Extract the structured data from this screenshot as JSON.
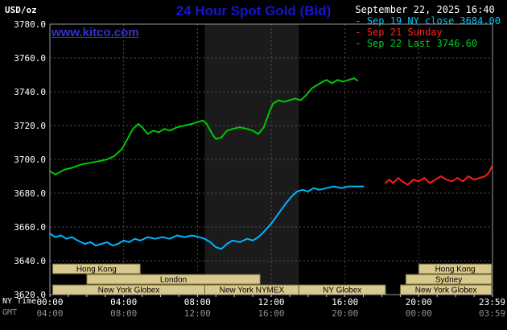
{
  "header": {
    "unit": "USD/oz",
    "title": "24 Hour Spot Gold (Bid)",
    "datetime": "September 22, 2025 16:40",
    "watermark": "www.kitco.com"
  },
  "legend": [
    {
      "label": "Sep 19 NY close 3684.00",
      "color": "#00c8ff"
    },
    {
      "label": "Sep 21 Sunday",
      "color": "#ff2020"
    },
    {
      "label": "Sep 22 Last 3746.60",
      "color": "#00cc22"
    }
  ],
  "axes": {
    "ny_label": "NY Time",
    "gmt_label": "GMT",
    "y_ticks": [
      {
        "v": 3780,
        "label": "3780.0"
      },
      {
        "v": 3760,
        "label": "3760.0"
      },
      {
        "v": 3740,
        "label": "3740.0"
      },
      {
        "v": 3720,
        "label": "3720.0"
      },
      {
        "v": 3700,
        "label": "3700.0"
      },
      {
        "v": 3680,
        "label": "3680.0"
      },
      {
        "v": 3660,
        "label": "3660.0"
      },
      {
        "v": 3640,
        "label": "3640.0"
      },
      {
        "v": 3620,
        "label": "3620.0"
      }
    ],
    "x_ticks": [
      {
        "h": 0,
        "ny": "00:00",
        "gmt": "04:00"
      },
      {
        "h": 4,
        "ny": "04:00",
        "gmt": "08:00"
      },
      {
        "h": 8,
        "ny": "08:00",
        "gmt": "12:00"
      },
      {
        "h": 12,
        "ny": "12:00",
        "gmt": "16:00"
      },
      {
        "h": 16,
        "ny": "16:00",
        "gmt": "20:00"
      },
      {
        "h": 20,
        "ny": "20:00",
        "gmt": "00:00"
      },
      {
        "h": 23.98,
        "ny": "23:59",
        "gmt": "03:59"
      }
    ]
  },
  "colors": {
    "background": "#000000",
    "title": "#1515cd",
    "watermark": "#3232cc",
    "text": "#ffffff",
    "text_dim": "#909090",
    "grid": "#4f4f4f",
    "frame": "#9a9a9a",
    "band": "#1b1b1b",
    "session_fill": "#d8c98c",
    "session_border": "#6b6136",
    "session_text": "#000000"
  },
  "chart_data": {
    "type": "line",
    "title": "24 Hour Spot Gold (Bid)",
    "x_unit": "hours (NY time)",
    "y_unit": "USD/oz",
    "xlim": [
      0,
      24
    ],
    "ylim": [
      3620,
      3780
    ],
    "grid": true,
    "session_band": {
      "start": 8.4,
      "end": 13.5
    },
    "series": [
      {
        "name": "Sep 19 NY close",
        "color": "#00b4ff",
        "points": [
          [
            0,
            3656
          ],
          [
            0.3,
            3654
          ],
          [
            0.6,
            3655
          ],
          [
            0.9,
            3653
          ],
          [
            1.2,
            3654
          ],
          [
            1.5,
            3652
          ],
          [
            1.9,
            3650
          ],
          [
            2.2,
            3651
          ],
          [
            2.5,
            3649
          ],
          [
            2.8,
            3650
          ],
          [
            3.1,
            3651
          ],
          [
            3.4,
            3649
          ],
          [
            3.7,
            3650
          ],
          [
            4.0,
            3652
          ],
          [
            4.3,
            3651
          ],
          [
            4.6,
            3653
          ],
          [
            4.9,
            3652
          ],
          [
            5.3,
            3654
          ],
          [
            5.7,
            3653
          ],
          [
            6.1,
            3654
          ],
          [
            6.5,
            3653
          ],
          [
            6.9,
            3655
          ],
          [
            7.3,
            3654
          ],
          [
            7.7,
            3655
          ],
          [
            8.1,
            3654
          ],
          [
            8.4,
            3653
          ],
          [
            8.7,
            3651
          ],
          [
            9.0,
            3648
          ],
          [
            9.3,
            3647
          ],
          [
            9.6,
            3650
          ],
          [
            9.9,
            3652
          ],
          [
            10.3,
            3651
          ],
          [
            10.7,
            3653
          ],
          [
            11.0,
            3652
          ],
          [
            11.3,
            3654
          ],
          [
            11.6,
            3657
          ],
          [
            12.0,
            3662
          ],
          [
            12.4,
            3668
          ],
          [
            12.8,
            3674
          ],
          [
            13.1,
            3678
          ],
          [
            13.4,
            3681
          ],
          [
            13.7,
            3682
          ],
          [
            14.0,
            3681
          ],
          [
            14.3,
            3683
          ],
          [
            14.6,
            3682
          ],
          [
            15.0,
            3683
          ],
          [
            15.4,
            3684
          ],
          [
            15.8,
            3683
          ],
          [
            16.2,
            3684
          ],
          [
            16.6,
            3684
          ],
          [
            17.0,
            3684
          ]
        ]
      },
      {
        "name": "Sep 21 Sunday",
        "color": "#ff1a1a",
        "points": [
          [
            18.2,
            3686
          ],
          [
            18.4,
            3688
          ],
          [
            18.6,
            3686
          ],
          [
            18.9,
            3689
          ],
          [
            19.1,
            3687
          ],
          [
            19.4,
            3685
          ],
          [
            19.7,
            3688
          ],
          [
            20.0,
            3687
          ],
          [
            20.3,
            3689
          ],
          [
            20.6,
            3686
          ],
          [
            20.9,
            3688
          ],
          [
            21.2,
            3690
          ],
          [
            21.5,
            3688
          ],
          [
            21.8,
            3687
          ],
          [
            22.1,
            3689
          ],
          [
            22.4,
            3687
          ],
          [
            22.7,
            3690
          ],
          [
            23.0,
            3688
          ],
          [
            23.3,
            3689
          ],
          [
            23.6,
            3690
          ],
          [
            23.8,
            3692
          ],
          [
            23.98,
            3696
          ]
        ]
      },
      {
        "name": "Sep 22 Last",
        "color": "#00c800",
        "points": [
          [
            0,
            3693
          ],
          [
            0.3,
            3691
          ],
          [
            0.8,
            3694
          ],
          [
            1.2,
            3695
          ],
          [
            1.7,
            3697
          ],
          [
            2.2,
            3698
          ],
          [
            2.7,
            3699
          ],
          [
            3.1,
            3700
          ],
          [
            3.5,
            3702
          ],
          [
            3.9,
            3706
          ],
          [
            4.2,
            3712
          ],
          [
            4.5,
            3718
          ],
          [
            4.8,
            3721
          ],
          [
            5.0,
            3719
          ],
          [
            5.3,
            3715
          ],
          [
            5.6,
            3717
          ],
          [
            5.9,
            3716
          ],
          [
            6.2,
            3718
          ],
          [
            6.5,
            3717
          ],
          [
            6.9,
            3719
          ],
          [
            7.3,
            3720
          ],
          [
            7.7,
            3721
          ],
          [
            8.0,
            3722
          ],
          [
            8.3,
            3723
          ],
          [
            8.5,
            3721
          ],
          [
            8.8,
            3715
          ],
          [
            9.0,
            3712
          ],
          [
            9.3,
            3713
          ],
          [
            9.6,
            3717
          ],
          [
            9.9,
            3718
          ],
          [
            10.3,
            3719
          ],
          [
            10.7,
            3718
          ],
          [
            11.0,
            3717
          ],
          [
            11.3,
            3715
          ],
          [
            11.6,
            3719
          ],
          [
            11.9,
            3728
          ],
          [
            12.1,
            3733
          ],
          [
            12.4,
            3735
          ],
          [
            12.7,
            3734
          ],
          [
            13.0,
            3735
          ],
          [
            13.3,
            3736
          ],
          [
            13.6,
            3735
          ],
          [
            13.9,
            3738
          ],
          [
            14.2,
            3742
          ],
          [
            14.5,
            3744
          ],
          [
            14.8,
            3746
          ],
          [
            15.0,
            3747
          ],
          [
            15.3,
            3745
          ],
          [
            15.6,
            3747
          ],
          [
            15.9,
            3746
          ],
          [
            16.2,
            3747
          ],
          [
            16.5,
            3748
          ],
          [
            16.67,
            3746.6
          ]
        ]
      }
    ],
    "sessions": [
      {
        "label": "Hong Kong",
        "row": 0,
        "start": 0.15,
        "end": 4.9
      },
      {
        "label": "Hong Kong",
        "row": 0,
        "start": 20.0,
        "end": 23.95
      },
      {
        "label": "London",
        "row": 1,
        "start": 2.0,
        "end": 11.4
      },
      {
        "label": "Sydney",
        "row": 1,
        "start": 19.3,
        "end": 23.95
      },
      {
        "label": "New York Globex",
        "row": 2,
        "start": 0.15,
        "end": 8.4
      },
      {
        "label": "New York NYMEX",
        "row": 2,
        "start": 8.4,
        "end": 13.5
      },
      {
        "label": "NY Globex",
        "row": 2,
        "start": 13.5,
        "end": 18.2
      },
      {
        "label": "New York Globex",
        "row": 2,
        "start": 19.0,
        "end": 23.95
      }
    ]
  }
}
